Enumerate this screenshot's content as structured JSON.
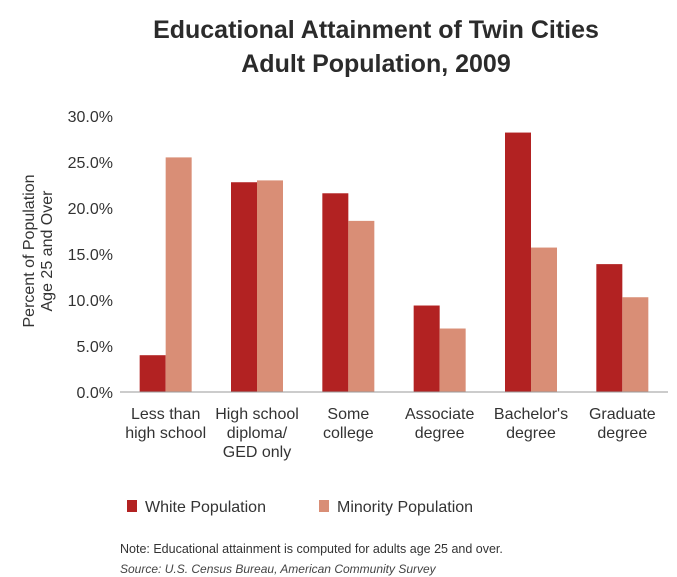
{
  "chart_data": {
    "type": "bar",
    "title_lines": [
      "Educational Attainment of Twin Cities",
      "Adult Population, 2009"
    ],
    "ylabel_lines": [
      "Percent of Population",
      "Age 25 and Over"
    ],
    "xlabel": "",
    "ylim": [
      0,
      30
    ],
    "y_ticks": [
      "0.0%",
      "5.0%",
      "10.0%",
      "15.0%",
      "20.0%",
      "25.0%",
      "30.0%"
    ],
    "y_tick_values": [
      0,
      5,
      10,
      15,
      20,
      25,
      30
    ],
    "grid": false,
    "legend_position": "bottom-left",
    "categories": [
      [
        "Less than",
        "high school"
      ],
      [
        "High school",
        "diploma/",
        "GED only"
      ],
      [
        "Some",
        "college"
      ],
      [
        "Associate",
        "degree"
      ],
      [
        "Bachelor's",
        "degree"
      ],
      [
        "Graduate",
        "degree"
      ]
    ],
    "series": [
      {
        "name": "White Population",
        "color": "#b22222",
        "values": [
          4.0,
          22.8,
          21.6,
          9.4,
          28.2,
          13.9
        ]
      },
      {
        "name": "Minority Population",
        "color": "#d98e76",
        "values": [
          25.5,
          23.0,
          18.6,
          6.9,
          15.7,
          10.3
        ]
      }
    ],
    "note": "Note: Educational attainment is computed for adults age 25 and over.",
    "source": "Source: U.S. Census Bureau, American Community Survey"
  }
}
